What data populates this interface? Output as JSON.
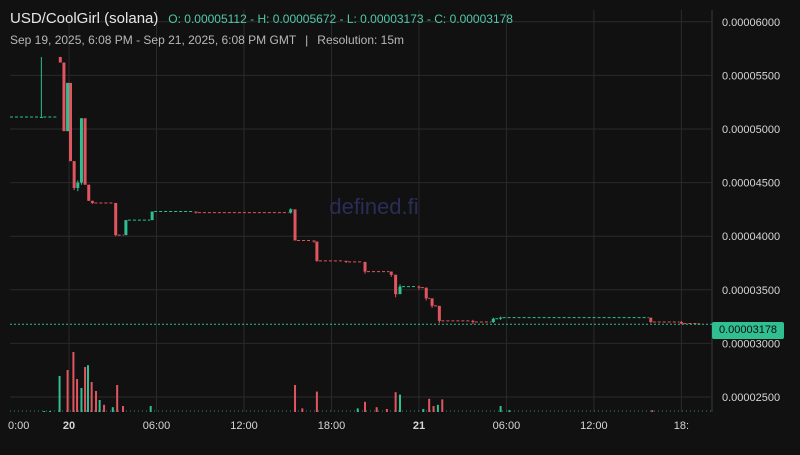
{
  "header": {
    "pair": "USD/CoolGirl (solana)",
    "ohlc": "O: 0.00005112 - H: 0.00005672 - L: 0.00003173 - C: 0.00003178",
    "range": "Sep 19, 2025, 6:08 PM - Sep 21, 2025, 6:08 PM GMT",
    "separator": "|",
    "resolution": "Resolution: 15m"
  },
  "watermark": "defined.fi",
  "last_price_label": "0.00003178",
  "colors": {
    "up": "#2fbf91",
    "down": "#e0555f",
    "grid": "#2a2a2a",
    "text": "#d6d6d6"
  },
  "chart_data": {
    "type": "candlestick",
    "ylim": [
      2.36e-05,
      6.11e-05
    ],
    "xlim": [
      -4.05,
      44.1
    ],
    "yticks": [
      2.5e-05,
      3e-05,
      3.5e-05,
      4e-05,
      4.5e-05,
      5e-05,
      5.5e-05,
      6e-05
    ],
    "ytick_labels": [
      "0.00002500",
      "0.00003000",
      "0.00003500",
      "0.00004000",
      "0.00004500",
      "0.00005000",
      "0.00005500",
      "0.00006000"
    ],
    "xticks": [
      0,
      6,
      12,
      18,
      24,
      30,
      36,
      42
    ],
    "xtick_labels": [
      "0:00",
      "20",
      "06:00",
      "12:00",
      "18:00",
      "21",
      "06:00",
      "12:00",
      "18:"
    ],
    "xtick_positions": [
      -6,
      0,
      6,
      12,
      18,
      24,
      30,
      36,
      42
    ],
    "last_price": 3.178e-05,
    "candles": [
      [
        -1.9,
        5.112e-05,
        5.112e-05,
        5.672e-05,
        5.112e-05
      ],
      [
        -0.6,
        5.672e-05,
        5.62e-05,
        5.672e-05,
        5.62e-05
      ],
      [
        -0.35,
        5.62e-05,
        4.98e-05,
        5.62e-05,
        4.98e-05
      ],
      [
        -0.1,
        4.98e-05,
        5.43e-05,
        5.43e-05,
        4.98e-05
      ],
      [
        0.1,
        5.43e-05,
        4.7e-05,
        5.43e-05,
        4.7e-05
      ],
      [
        0.35,
        4.7e-05,
        4.45e-05,
        4.7e-05,
        4.43e-05
      ],
      [
        0.6,
        4.45e-05,
        4.5e-05,
        4.52e-05,
        4.42e-05
      ],
      [
        0.85,
        4.5e-05,
        5.1e-05,
        5.1e-05,
        4.48e-05
      ],
      [
        1.1,
        5.1e-05,
        4.48e-05,
        5.1e-05,
        4.48e-05
      ],
      [
        1.35,
        4.48e-05,
        4.33e-05,
        4.48e-05,
        4.33e-05
      ],
      [
        1.6,
        4.33e-05,
        4.31e-05,
        4.33e-05,
        4.3e-05
      ],
      [
        3.2,
        4.31e-05,
        4.01e-05,
        4.31e-05,
        4e-05
      ],
      [
        3.9,
        4.01e-05,
        4.15e-05,
        4.15e-05,
        4.01e-05
      ],
      [
        5.7,
        4.15e-05,
        4.23e-05,
        4.23e-05,
        4.15e-05
      ],
      [
        8.7,
        4.23e-05,
        4.22e-05,
        4.23e-05,
        4.21e-05
      ],
      [
        15.2,
        4.22e-05,
        4.25e-05,
        4.26e-05,
        4.21e-05
      ],
      [
        15.5,
        4.25e-05,
        3.96e-05,
        4.25e-05,
        3.96e-05
      ],
      [
        16.8,
        3.96e-05,
        3.95e-05,
        3.96e-05,
        3.94e-05
      ],
      [
        17.0,
        3.95e-05,
        3.77e-05,
        3.95e-05,
        3.76e-05
      ],
      [
        19.0,
        3.77e-05,
        3.76e-05,
        3.77e-05,
        3.75e-05
      ],
      [
        20.3,
        3.76e-05,
        3.67e-05,
        3.76e-05,
        3.65e-05
      ],
      [
        22.1,
        3.67e-05,
        3.64e-05,
        3.67e-05,
        3.62e-05
      ],
      [
        22.4,
        3.64e-05,
        3.46e-05,
        3.64e-05,
        3.43e-05
      ],
      [
        22.7,
        3.46e-05,
        3.53e-05,
        3.55e-05,
        3.46e-05
      ],
      [
        24.0,
        3.53e-05,
        3.52e-05,
        3.54e-05,
        3.5e-05
      ],
      [
        24.5,
        3.52e-05,
        3.42e-05,
        3.52e-05,
        3.4e-05
      ],
      [
        24.9,
        3.42e-05,
        3.35e-05,
        3.42e-05,
        3.33e-05
      ],
      [
        25.4,
        3.35e-05,
        3.21e-05,
        3.35e-05,
        3.19e-05
      ],
      [
        27.7,
        3.21e-05,
        3.2e-05,
        3.22e-05,
        3.18e-05
      ],
      [
        29.1,
        3.2e-05,
        3.23e-05,
        3.24e-05,
        3.19e-05
      ],
      [
        29.6,
        3.23e-05,
        3.24e-05,
        3.25e-05,
        3.22e-05
      ],
      [
        39.9,
        3.24e-05,
        3.2e-05,
        3.24e-05,
        3.19e-05
      ],
      [
        42.0,
        3.2e-05,
        3.185e-05,
        3.21e-05,
        3.18e-05
      ],
      [
        43.2,
        3.185e-05,
        3.178e-05,
        3.19e-05,
        3.173e-05
      ]
    ],
    "volume": [
      [
        -1.7,
        0.0,
        "up"
      ],
      [
        -1.3,
        0.0,
        "up"
      ],
      [
        -0.65,
        0.6,
        "up"
      ],
      [
        -0.1,
        0.7,
        "down"
      ],
      [
        0.3,
        1.0,
        "down"
      ],
      [
        0.55,
        0.55,
        "down"
      ],
      [
        0.85,
        0.4,
        "up"
      ],
      [
        1.1,
        0.75,
        "down"
      ],
      [
        1.3,
        0.78,
        "up"
      ],
      [
        1.55,
        0.5,
        "down"
      ],
      [
        1.85,
        0.35,
        "down"
      ],
      [
        2.1,
        0.2,
        "up"
      ],
      [
        2.4,
        0.12,
        "down"
      ],
      [
        3.0,
        0.08,
        "up"
      ],
      [
        3.3,
        0.45,
        "down"
      ],
      [
        3.7,
        0.1,
        "down"
      ],
      [
        5.6,
        0.1,
        "up"
      ],
      [
        15.5,
        0.45,
        "down"
      ],
      [
        16.0,
        0.06,
        "down"
      ],
      [
        17.0,
        0.34,
        "down"
      ],
      [
        19.8,
        0.06,
        "up"
      ],
      [
        20.3,
        0.17,
        "down"
      ],
      [
        21.1,
        0.08,
        "down"
      ],
      [
        21.8,
        0.05,
        "down"
      ],
      [
        22.4,
        0.33,
        "down"
      ],
      [
        22.7,
        0.29,
        "up"
      ],
      [
        24.3,
        0.05,
        "up"
      ],
      [
        24.7,
        0.22,
        "down"
      ],
      [
        25.0,
        0.1,
        "down"
      ],
      [
        25.3,
        0.12,
        "up"
      ],
      [
        25.6,
        0.21,
        "down"
      ],
      [
        29.6,
        0.1,
        "up"
      ],
      [
        30.2,
        0.03,
        "up"
      ],
      [
        40.0,
        0.03,
        "down"
      ]
    ]
  }
}
